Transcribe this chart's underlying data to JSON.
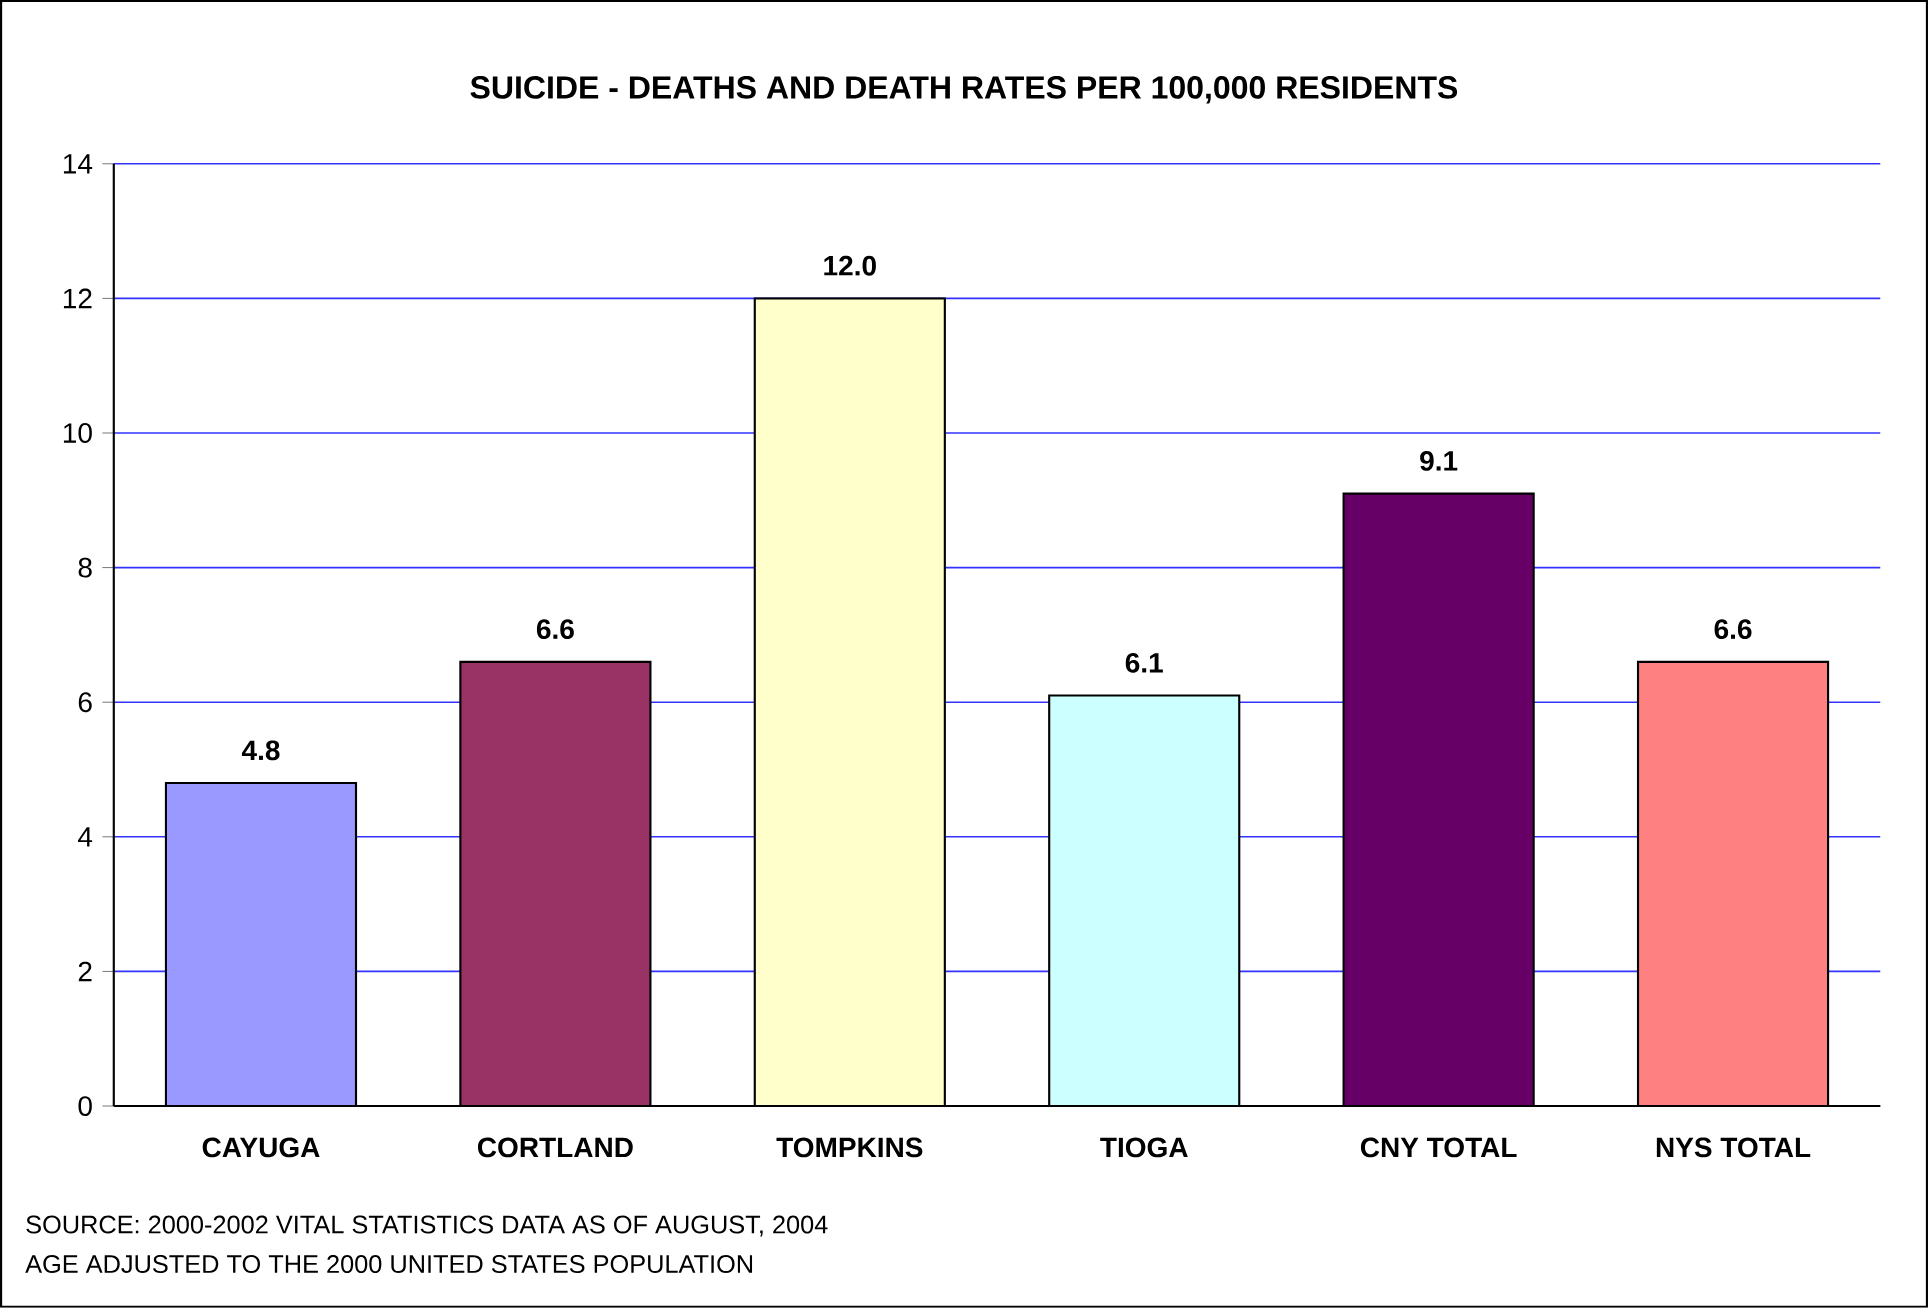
{
  "chart_data": {
    "type": "bar",
    "title": "SUICIDE - DEATHS AND DEATH RATES PER 100,000 RESIDENTS",
    "categories": [
      "CAYUGA",
      "CORTLAND",
      "TOMPKINS",
      "TIOGA",
      "CNY TOTAL",
      "NYS TOTAL"
    ],
    "values": [
      4.8,
      6.6,
      12.0,
      6.1,
      9.1,
      6.6
    ],
    "value_labels": [
      "4.8",
      "6.6",
      "12.0",
      "6.1",
      "9.1",
      "6.6"
    ],
    "colors": [
      "#9999ff",
      "#993366",
      "#ffffcc",
      "#ccffff",
      "#660066",
      "#ff8080"
    ],
    "ylim": [
      0,
      14
    ],
    "yticks": [
      0,
      2,
      4,
      6,
      8,
      10,
      12,
      14
    ],
    "grid": "y",
    "annotations": [
      "SOURCE: 2000-2002 VITAL STATISTICS DATA AS OF AUGUST, 2004",
      "AGE ADJUSTED TO THE 2000 UNITED STATES POPULATION"
    ]
  }
}
